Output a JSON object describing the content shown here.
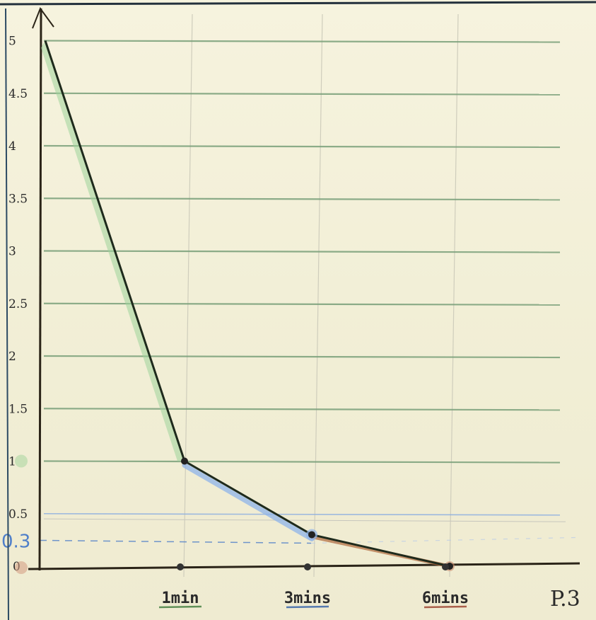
{
  "chart_data": {
    "type": "line",
    "title": "",
    "xlabel": "",
    "ylabel": "",
    "ylim": [
      0,
      5.2
    ],
    "grid": true,
    "y_ticks": [
      {
        "value": 0,
        "label": "0"
      },
      {
        "value": 0.5,
        "label": "0.5"
      },
      {
        "value": 1,
        "label": "1"
      },
      {
        "value": 1.5,
        "label": "1.5"
      },
      {
        "value": 2,
        "label": "2"
      },
      {
        "value": 2.5,
        "label": "2.5"
      },
      {
        "value": 3,
        "label": "3"
      },
      {
        "value": 3.5,
        "label": "3.5"
      },
      {
        "value": 4,
        "label": "4"
      },
      {
        "value": 4.5,
        "label": "4.5"
      },
      {
        "value": 5,
        "label": "5"
      }
    ],
    "x_ticks": [
      {
        "value": 1,
        "label": "1min",
        "color": "#3d7a3a"
      },
      {
        "value": 2,
        "label": "3mins",
        "color": "#2f5ea8"
      },
      {
        "value": 3,
        "label": "6mins",
        "color": "#9a3d2a"
      }
    ],
    "series": [
      {
        "x": [
          0,
          1,
          2,
          3
        ],
        "y": [
          5.0,
          1.0,
          0.3,
          0.0
        ],
        "color": "#1e2a1c"
      }
    ],
    "annotations": [
      {
        "y": 0.3,
        "label": "0.3",
        "color": "#4f7fc9",
        "style": "dashed"
      }
    ],
    "page_mark": "P.3",
    "colors": {
      "grid_major": "#7aa07a",
      "grid_blue": "#8fb0e0",
      "axis": "#2b2418",
      "green_highlight": "#9fd49a",
      "blue_highlight": "#8fb4ea",
      "brown_highlight": "#b06a3e"
    }
  }
}
